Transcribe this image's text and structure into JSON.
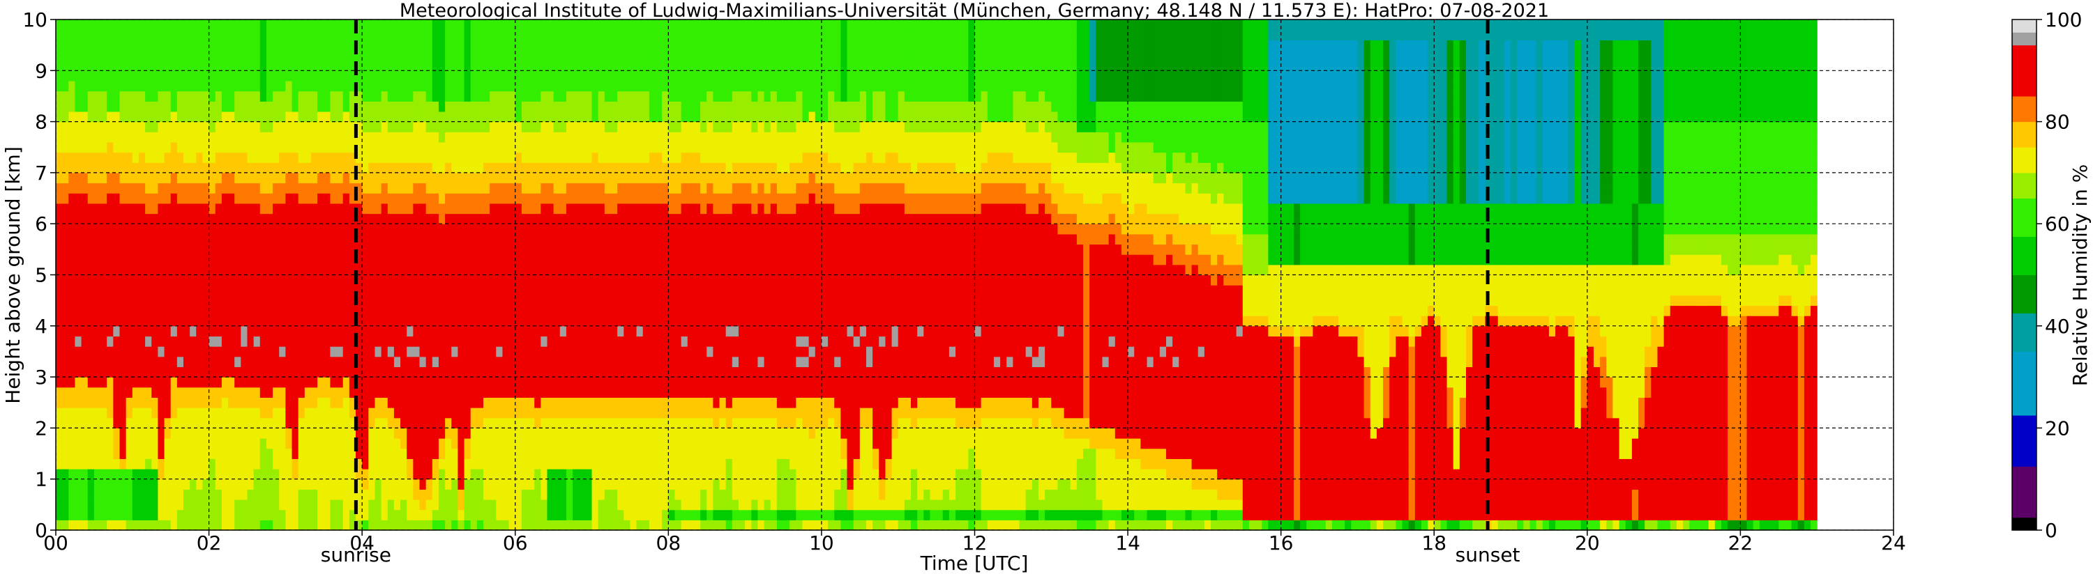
{
  "chart_data": {
    "type": "heatmap",
    "title": "Meteorological Institute of Ludwig-Maximilians-Universität (München, Germany; 48.148 N / 11.573 E):    HatPro: 07-08-2021",
    "xlabel": "Time [UTC]",
    "ylabel": "Height above ground [km]",
    "xlim": [
      0,
      24
    ],
    "ylim": [
      0,
      10
    ],
    "x_ticks": [
      "00",
      "02",
      "04",
      "06",
      "08",
      "10",
      "12",
      "14",
      "16",
      "18",
      "20",
      "22",
      "24"
    ],
    "y_ticks": [
      "0",
      "1",
      "2",
      "3",
      "4",
      "5",
      "6",
      "7",
      "8",
      "9",
      "10"
    ],
    "grid": true,
    "data_end_hour": 23.0,
    "markers": [
      {
        "label": "sunrise",
        "hour": 3.92
      },
      {
        "label": "sunset",
        "hour": 18.7
      }
    ],
    "colorbar": {
      "label": "Relative Humidity in %",
      "ticks": [
        "0",
        "20",
        "40",
        "60",
        "80",
        "100"
      ],
      "range": [
        0,
        100
      ],
      "colors": [
        {
          "from": 0,
          "to": 2.5,
          "color": "#000000"
        },
        {
          "from": 2.5,
          "to": 12.5,
          "color": "#5a0067"
        },
        {
          "from": 12.5,
          "to": 22.5,
          "color": "#0000c8"
        },
        {
          "from": 22.5,
          "to": 35,
          "color": "#00a0c8"
        },
        {
          "from": 35,
          "to": 42.5,
          "color": "#00a0a0"
        },
        {
          "from": 42.5,
          "to": 50,
          "color": "#009900"
        },
        {
          "from": 50,
          "to": 57.5,
          "color": "#00cc00"
        },
        {
          "from": 57.5,
          "to": 65,
          "color": "#33ee00"
        },
        {
          "from": 65,
          "to": 70,
          "color": "#99ee00"
        },
        {
          "from": 70,
          "to": 75,
          "color": "#eeee00"
        },
        {
          "from": 75,
          "to": 80,
          "color": "#ffc800"
        },
        {
          "from": 80,
          "to": 85,
          "color": "#ff7800"
        },
        {
          "from": 85,
          "to": 95,
          "color": "#ee0000"
        },
        {
          "from": 95,
          "to": 97.5,
          "color": "#a0a0a0"
        },
        {
          "from": 97.5,
          "to": 100,
          "color": "#dddddd"
        }
      ]
    },
    "regimes": [
      {
        "hours": [
          0,
          4
        ],
        "description": "moist layer 2.7-6.5 km, green aloft"
      },
      {
        "hours": [
          4,
          13
        ],
        "description": "moist layer 2.5-6.5 km, yellow-green near surface from 8 h"
      },
      {
        "hours": [
          13,
          15.5
        ],
        "description": "moist layer deepening to surface"
      },
      {
        "hours": [
          15.5,
          23
        ],
        "description": "saturated below 4 km, dry cyan layer above 6 km"
      }
    ]
  }
}
